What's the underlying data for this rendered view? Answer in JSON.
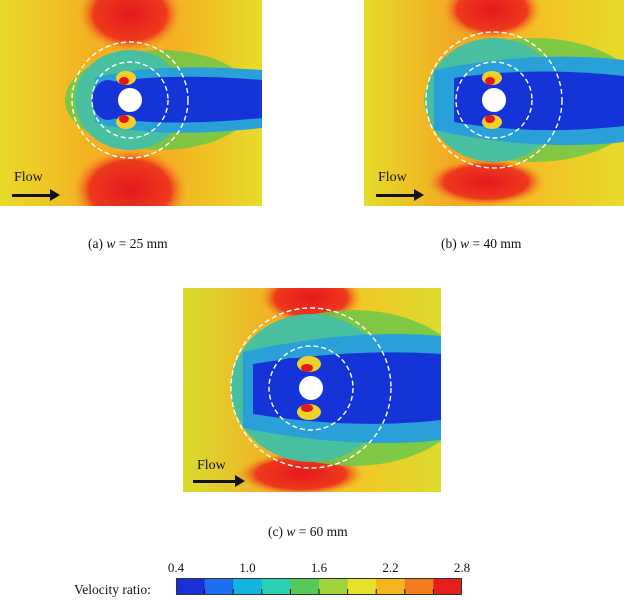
{
  "panels": [
    {
      "id": "a",
      "caption_prefix": "(a) ",
      "caption_var": "w",
      "caption_suffix": " = 25 mm",
      "flow_label": "Flow"
    },
    {
      "id": "b",
      "caption_prefix": "(b) ",
      "caption_var": "w",
      "caption_suffix": " = 40 mm",
      "flow_label": "Flow"
    },
    {
      "id": "c",
      "caption_prefix": "(c) ",
      "caption_var": "w",
      "caption_suffix": " = 60 mm",
      "flow_label": "Flow"
    }
  ],
  "legend": {
    "label": "Velocity ratio:",
    "ticks": [
      "0.4",
      "1.0",
      "1.6",
      "2.2",
      "2.8"
    ],
    "colors": [
      "#1a2fd6",
      "#1e6ff0",
      "#14b4e0",
      "#2ad0b0",
      "#55c85a",
      "#a0d23c",
      "#e8e02a",
      "#f6b41e",
      "#f47a1e",
      "#e61e1e"
    ]
  },
  "colors": {
    "low": "#1434d8",
    "mid_low": "#20b4e8",
    "mid": "#3ec46a",
    "mid_high": "#e6dc2a",
    "high": "#e4181c",
    "cylinder": "#ffffff",
    "dashed": "#ffffff"
  }
}
